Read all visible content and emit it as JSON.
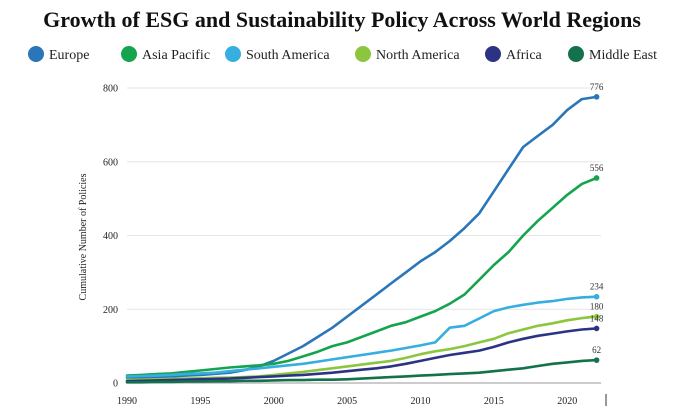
{
  "chart_data": {
    "type": "line",
    "title": "Growth of ESG and Sustainability Policy Across World Regions",
    "ylabel": "Cumulative Number of Policies",
    "xlabel": "",
    "xlim": [
      1990,
      2022.3
    ],
    "ylim": [
      0,
      800
    ],
    "x_ticks": [
      1990,
      1995,
      2000,
      2005,
      2010,
      2015,
      2020
    ],
    "y_ticks": [
      0,
      200,
      400,
      600,
      800
    ],
    "grid": "horizontal",
    "legend": "top",
    "x": [
      1990,
      1991,
      1992,
      1993,
      1994,
      1995,
      1996,
      1997,
      1998,
      1999,
      2000,
      2001,
      2002,
      2003,
      2004,
      2005,
      2006,
      2007,
      2008,
      2009,
      2010,
      2011,
      2012,
      2013,
      2014,
      2015,
      2016,
      2017,
      2018,
      2019,
      2020,
      2021,
      2022
    ],
    "series": [
      {
        "name": "Europe",
        "color": "#2a76b9",
        "end_label": "776",
        "values": [
          15,
          15,
          16,
          18,
          20,
          22,
          25,
          28,
          35,
          45,
          60,
          80,
          100,
          125,
          150,
          180,
          210,
          240,
          270,
          300,
          330,
          355,
          385,
          420,
          460,
          520,
          580,
          640,
          670,
          700,
          740,
          770,
          776
        ]
      },
      {
        "name": "Asia Pacific",
        "color": "#14a44d",
        "end_label": "556",
        "values": [
          20,
          22,
          24,
          26,
          30,
          34,
          38,
          42,
          45,
          48,
          52,
          60,
          72,
          85,
          100,
          110,
          125,
          140,
          155,
          165,
          180,
          195,
          215,
          240,
          280,
          320,
          355,
          400,
          440,
          475,
          510,
          540,
          556
        ]
      },
      {
        "name": "South America",
        "color": "#36aee0",
        "end_label": "234",
        "values": [
          18,
          19,
          20,
          22,
          24,
          26,
          28,
          32,
          36,
          40,
          44,
          48,
          52,
          58,
          64,
          70,
          76,
          82,
          88,
          95,
          102,
          110,
          150,
          155,
          175,
          195,
          205,
          212,
          218,
          222,
          228,
          232,
          234
        ]
      },
      {
        "name": "North America",
        "color": "#8cc63f",
        "end_label": "180",
        "values": [
          8,
          9,
          10,
          11,
          12,
          13,
          14,
          15,
          16,
          18,
          22,
          26,
          30,
          35,
          40,
          45,
          50,
          55,
          60,
          68,
          78,
          86,
          92,
          100,
          110,
          120,
          135,
          145,
          155,
          162,
          170,
          176,
          180
        ]
      },
      {
        "name": "Africa",
        "color": "#2d3384",
        "end_label": "148",
        "values": [
          5,
          6,
          7,
          8,
          9,
          10,
          11,
          12,
          14,
          16,
          18,
          20,
          22,
          25,
          28,
          32,
          36,
          40,
          45,
          52,
          60,
          68,
          76,
          82,
          88,
          98,
          110,
          120,
          128,
          134,
          140,
          145,
          148
        ]
      },
      {
        "name": "Middle East",
        "color": "#12724a",
        "end_label": "62",
        "values": [
          2,
          2,
          3,
          3,
          4,
          4,
          5,
          5,
          6,
          6,
          7,
          8,
          8,
          9,
          9,
          10,
          12,
          14,
          16,
          18,
          20,
          22,
          24,
          26,
          28,
          32,
          36,
          40,
          46,
          52,
          56,
          60,
          62
        ]
      }
    ]
  }
}
